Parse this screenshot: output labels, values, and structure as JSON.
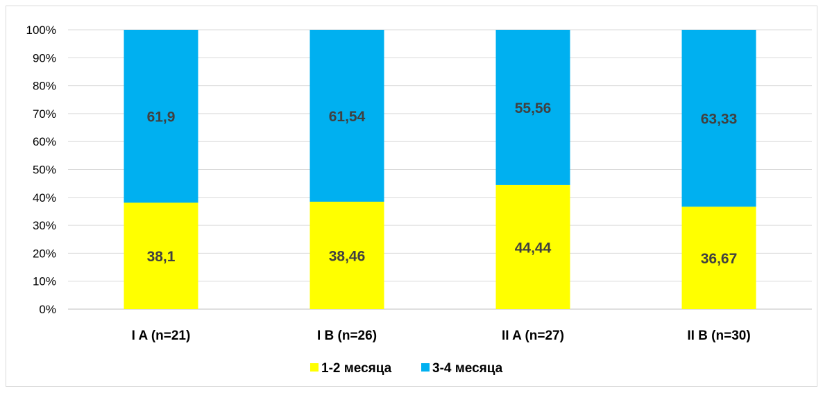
{
  "chart_data": {
    "type": "bar",
    "stacked": true,
    "percent_stacked": true,
    "categories": [
      "I A (n=21)",
      "I B (n=26)",
      "II A (n=27)",
      "II B (n=30)"
    ],
    "series": [
      {
        "name": "1-2 месяца",
        "values": [
          38.1,
          38.46,
          44.44,
          36.67
        ],
        "labels": [
          "38,1",
          "38,46",
          "44,44",
          "36,67"
        ],
        "color": "#ffff00"
      },
      {
        "name": "3-4 месяца",
        "values": [
          61.9,
          61.54,
          55.56,
          63.33
        ],
        "labels": [
          "61,9",
          "61,54",
          "55,56",
          "63,33"
        ],
        "color": "#00b0f0"
      }
    ],
    "y_ticks": [
      "0%",
      "10%",
      "20%",
      "30%",
      "40%",
      "50%",
      "60%",
      "70%",
      "80%",
      "90%",
      "100%"
    ],
    "ylim": [
      0,
      100
    ],
    "grid": true,
    "legend_position": "bottom",
    "title": "",
    "xlabel": "",
    "ylabel": ""
  }
}
